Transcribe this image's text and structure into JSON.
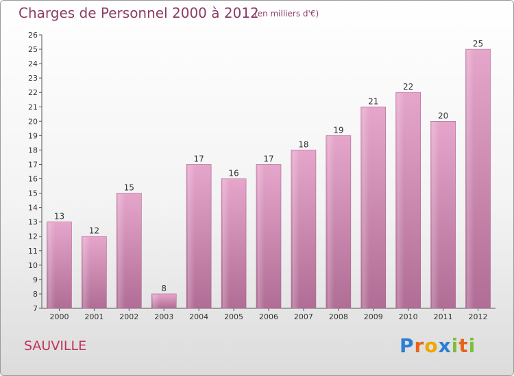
{
  "chart_data": {
    "type": "bar",
    "title": "Charges de Personnel 2000 à 2012",
    "subtitle": "(en milliers d'€)",
    "categories": [
      "2000",
      "2001",
      "2002",
      "2003",
      "2004",
      "2005",
      "2006",
      "2007",
      "2008",
      "2009",
      "2010",
      "2011",
      "2012"
    ],
    "values": [
      13,
      12,
      15,
      8,
      17,
      16,
      17,
      18,
      19,
      21,
      22,
      20,
      25
    ],
    "ylim": [
      7,
      26
    ],
    "yticks": [
      7,
      8,
      9,
      10,
      11,
      12,
      13,
      14,
      15,
      16,
      17,
      18,
      19,
      20,
      21,
      22,
      23,
      24,
      25,
      26
    ],
    "grid": false,
    "bar_color": "#c87aa6"
  },
  "city": "SAUVILLE",
  "logo": {
    "text": "Proxiti",
    "letters": [
      {
        "ch": "P",
        "color": "#2a7fd4"
      },
      {
        "ch": "r",
        "color": "#e8641b"
      },
      {
        "ch": "o",
        "color": "#f0a500"
      },
      {
        "ch": "x",
        "color": "#2a7fd4"
      },
      {
        "ch": "i",
        "color": "#7cbf3a"
      },
      {
        "ch": "t",
        "color": "#e8641b"
      },
      {
        "ch": "i",
        "color": "#7cbf3a"
      }
    ]
  }
}
